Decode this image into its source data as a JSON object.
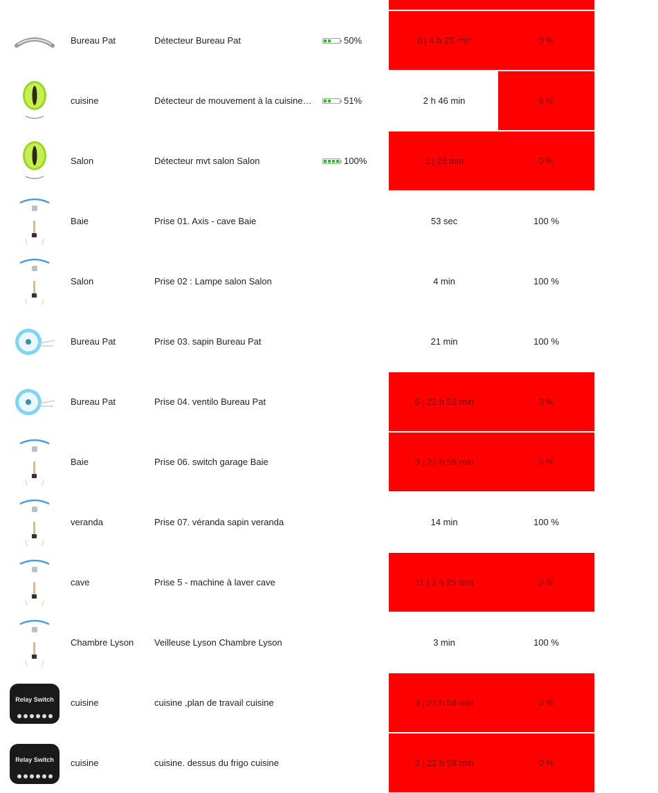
{
  "colors": {
    "alert": "#ff0000",
    "battery": "#2fb82f",
    "background": "#ffffff"
  },
  "devices": [
    {
      "icon": "motion-sensor-icon",
      "room": "",
      "name": "",
      "battery": null,
      "battery_label": "",
      "last_seen": "",
      "availability": "",
      "alert": true,
      "alert_scope": "both"
    },
    {
      "icon": "wall-sensor-icon",
      "room": "Bureau Pat",
      "name": "Détecteur Bureau Pat",
      "battery": 0.5,
      "battery_label": "50%",
      "last_seen": "6 j 4 h 25 min",
      "availability": "0 %",
      "alert": true,
      "alert_scope": "both"
    },
    {
      "icon": "eye-sensor-icon",
      "room": "cuisine",
      "name": "Détecteur de mouvement à la cuisine cuisine",
      "battery": 0.51,
      "battery_label": "51%",
      "last_seen": "2 h 46 min",
      "availability": "6 %",
      "alert": true,
      "alert_scope": "pct"
    },
    {
      "icon": "eye-sensor-icon",
      "room": "Salon",
      "name": "Détecteur mvt salon Salon",
      "battery": 1.0,
      "battery_label": "100%",
      "last_seen": "1 j 28 min",
      "availability": "0 %",
      "alert": true,
      "alert_scope": "both"
    },
    {
      "icon": "plug-icon",
      "room": "Baie",
      "name": "Prise 01. Axis - cave Baie",
      "battery": null,
      "battery_label": "",
      "last_seen": "53 sec",
      "availability": "100 %",
      "alert": false,
      "alert_scope": "none"
    },
    {
      "icon": "plug-icon",
      "room": "Salon",
      "name": "Prise 02 : Lampe salon Salon",
      "battery": null,
      "battery_label": "",
      "last_seen": "4 min",
      "availability": "100 %",
      "alert": false,
      "alert_scope": "none"
    },
    {
      "icon": "round-plug-icon",
      "room": "Bureau Pat",
      "name": "Prise 03. sapin Bureau Pat",
      "battery": null,
      "battery_label": "",
      "last_seen": "21 min",
      "availability": "100 %",
      "alert": false,
      "alert_scope": "none"
    },
    {
      "icon": "round-plug-icon",
      "room": "Bureau Pat",
      "name": "Prise 04. ventilo Bureau Pat",
      "battery": null,
      "battery_label": "",
      "last_seen": "5 j 22 h 52 min",
      "availability": "0 %",
      "alert": true,
      "alert_scope": "both"
    },
    {
      "icon": "plug-icon",
      "room": "Baie",
      "name": "Prise 06. switch garage Baie",
      "battery": null,
      "battery_label": "",
      "last_seen": "3 j 22 h 55 min",
      "availability": "0 %",
      "alert": true,
      "alert_scope": "both"
    },
    {
      "icon": "plug-icon",
      "room": "veranda",
      "name": "Prise 07. véranda sapin veranda",
      "battery": null,
      "battery_label": "",
      "last_seen": "14 min",
      "availability": "100 %",
      "alert": false,
      "alert_scope": "none"
    },
    {
      "icon": "plug-icon",
      "room": "cave",
      "name": "Prise 5 - machine à laver cave",
      "battery": null,
      "battery_label": "",
      "last_seen": "11 j 2 h 25 min",
      "availability": "0 %",
      "alert": true,
      "alert_scope": "both"
    },
    {
      "icon": "plug-icon",
      "room": "Chambre Lyson",
      "name": "Veilleuse Lyson Chambre Lyson",
      "battery": null,
      "battery_label": "",
      "last_seen": "3 min",
      "availability": "100 %",
      "alert": false,
      "alert_scope": "none"
    },
    {
      "icon": "relay-switch-icon",
      "room": "cuisine",
      "name": "cuisine ,plan de travail cuisine",
      "battery": null,
      "battery_label": "",
      "last_seen": "3 j 22 h 58 min",
      "availability": "0 %",
      "alert": true,
      "alert_scope": "both"
    },
    {
      "icon": "relay-switch-icon",
      "room": "cuisine",
      "name": "cuisine. dessus du frigo cuisine",
      "battery": null,
      "battery_label": "",
      "last_seen": "3 j 22 h 58 min",
      "availability": "0 %",
      "alert": true,
      "alert_scope": "both"
    }
  ],
  "relay_label": "Relay Switch"
}
